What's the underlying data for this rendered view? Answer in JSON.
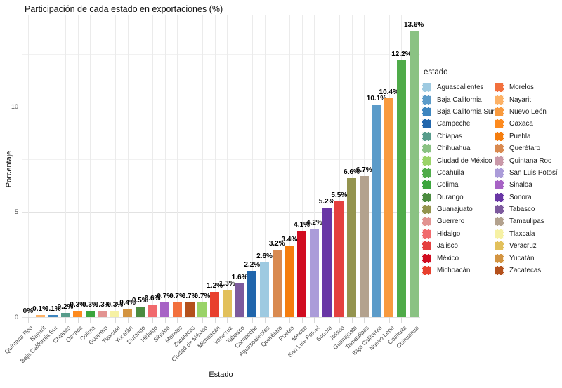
{
  "title": "Participación de cada estado en exportaciones (%)",
  "axes": {
    "x_title": "Estado",
    "y_title": "Porcentaje",
    "y_ticks": [
      0,
      5,
      10
    ],
    "y_minor": [
      2.5,
      7.5,
      12.5
    ]
  },
  "legend": {
    "title": "estado",
    "items": [
      {
        "label": "Aguascalientes",
        "color": "#9ecae1"
      },
      {
        "label": "Baja California",
        "color": "#5b9bc9"
      },
      {
        "label": "Baja California Sur",
        "color": "#3d85bf"
      },
      {
        "label": "Campeche",
        "color": "#2166ac"
      },
      {
        "label": "Chiapas",
        "color": "#579c8b"
      },
      {
        "label": "Chihuahua",
        "color": "#8ac283"
      },
      {
        "label": "Ciudad de México",
        "color": "#9ad368"
      },
      {
        "label": "Coahuila",
        "color": "#4fab49"
      },
      {
        "label": "Colima",
        "color": "#3ba53c"
      },
      {
        "label": "Durango",
        "color": "#4b8b3f"
      },
      {
        "label": "Guanajuato",
        "color": "#94944f"
      },
      {
        "label": "Guerrero",
        "color": "#e29391"
      },
      {
        "label": "Hidalgo",
        "color": "#f16a6d"
      },
      {
        "label": "Jalisco",
        "color": "#e4403f"
      },
      {
        "label": "México",
        "color": "#d10c20"
      },
      {
        "label": "Michoacán",
        "color": "#e8402e"
      },
      {
        "label": "Morelos",
        "color": "#f2703d"
      },
      {
        "label": "Nayarit",
        "color": "#fdb266"
      },
      {
        "label": "Nuevo León",
        "color": "#f89a3e"
      },
      {
        "label": "Oaxaca",
        "color": "#fd8a1e"
      },
      {
        "label": "Puebla",
        "color": "#f57d0d"
      },
      {
        "label": "Querétaro",
        "color": "#d98a50"
      },
      {
        "label": "Quintana Roo",
        "color": "#c998a8"
      },
      {
        "label": "San Luis Potosí",
        "color": "#ab9cd9"
      },
      {
        "label": "Sinaloa",
        "color": "#a763c5"
      },
      {
        "label": "Sonora",
        "color": "#6936a5"
      },
      {
        "label": "Tabasco",
        "color": "#7d5a9d"
      },
      {
        "label": "Tamaulipas",
        "color": "#b3a28e"
      },
      {
        "label": "Tlaxcala",
        "color": "#f6f1a4"
      },
      {
        "label": "Veracruz",
        "color": "#e2c05b"
      },
      {
        "label": "Yucatán",
        "color": "#d39441"
      },
      {
        "label": "Zacatecas",
        "color": "#b4511c"
      }
    ]
  },
  "chart_data": {
    "type": "bar",
    "title": "Participación de cada estado en exportaciones (%)",
    "xlabel": "Estado",
    "ylabel": "Porcentaje",
    "ylim": [
      0,
      14.3
    ],
    "grid": true,
    "legend_position": "right",
    "categories": [
      "Quintana Roo",
      "Nayarit",
      "Baja California Sur",
      "Chiapas",
      "Oaxaca",
      "Colima",
      "Guerrero",
      "Tlaxcala",
      "Yucatán",
      "Durango",
      "Hidalgo",
      "Sinaloa",
      "Morelos",
      "Zacatecas",
      "Ciudad de México",
      "Michoacán",
      "Veracruz",
      "Tabasco",
      "Campeche",
      "Aguascalientes",
      "Querétaro",
      "Puebla",
      "México",
      "San Luis Potosí",
      "Sonora",
      "Jalisco",
      "Guanajuato",
      "Tamaulipas",
      "Baja California",
      "Nuevo León",
      "Coahuila",
      "Chihuahua"
    ],
    "values": [
      0,
      0.1,
      0.1,
      0.2,
      0.3,
      0.3,
      0.3,
      0.3,
      0.4,
      0.5,
      0.6,
      0.7,
      0.7,
      0.7,
      0.7,
      1.2,
      1.3,
      1.6,
      2.2,
      2.6,
      3.2,
      3.4,
      4.1,
      4.2,
      5.2,
      5.5,
      6.6,
      6.7,
      10.1,
      10.4,
      12.2,
      13.6
    ],
    "labels": [
      "0%",
      "0.1%",
      "0.1%",
      "0.2%",
      "0.3%",
      "0.3%",
      "0.3%",
      "0.3%",
      "0.4%",
      "0.5%",
      "0.6%",
      "0.7%",
      "0.7%",
      "0.7%",
      "0.7%",
      "1.2%",
      "1.3%",
      "1.6%",
      "2.2%",
      "2.6%",
      "3.2%",
      "3.4%",
      "4.1%",
      "4.2%",
      "5.2%",
      "5.5%",
      "6.6%",
      "6.7%",
      "10.1%",
      "10.4%",
      "12.2%",
      "13.6%"
    ]
  }
}
